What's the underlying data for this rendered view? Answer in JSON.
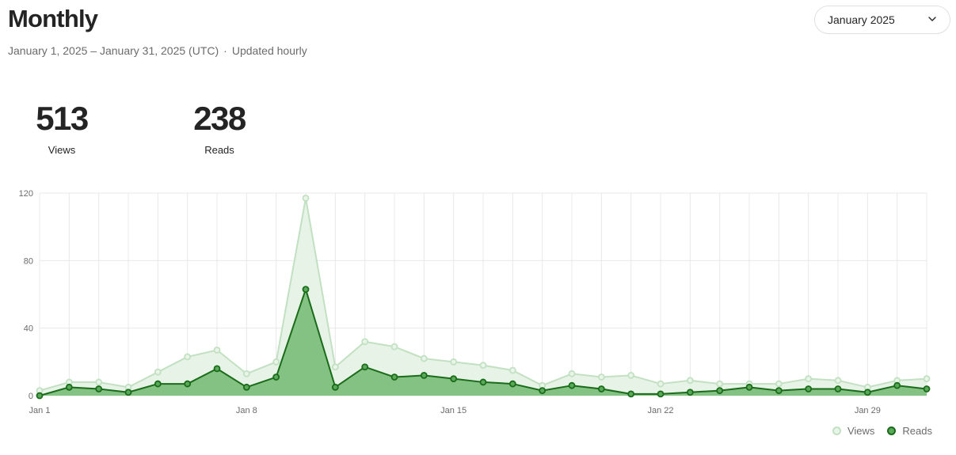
{
  "header": {
    "title": "Monthly",
    "date_range": "January 1, 2025 – January 31, 2025 (UTC)",
    "separator": "·",
    "update_note": "Updated hourly"
  },
  "month_select": {
    "value": "January 2025",
    "icon": "chevron-down-icon"
  },
  "stats": {
    "views": {
      "value": "513",
      "label": "Views"
    },
    "reads": {
      "value": "238",
      "label": "Reads"
    }
  },
  "colors": {
    "views_line": "#c2e0c2",
    "views_fill": "#e6f3e6",
    "reads_line": "#1a6b1a",
    "reads_fill": "#84c284",
    "reads_point_fill": "#5aa85a",
    "grid": "#e8e8e8"
  },
  "chart_data": {
    "type": "area",
    "x": [
      "Jan 1",
      "Jan 2",
      "Jan 3",
      "Jan 4",
      "Jan 5",
      "Jan 6",
      "Jan 7",
      "Jan 8",
      "Jan 9",
      "Jan 10",
      "Jan 11",
      "Jan 12",
      "Jan 13",
      "Jan 14",
      "Jan 15",
      "Jan 16",
      "Jan 17",
      "Jan 18",
      "Jan 19",
      "Jan 20",
      "Jan 21",
      "Jan 22",
      "Jan 23",
      "Jan 24",
      "Jan 25",
      "Jan 26",
      "Jan 27",
      "Jan 28",
      "Jan 29",
      "Jan 30",
      "Jan 31"
    ],
    "x_tick_labels": [
      "Jan 1",
      "Jan 8",
      "Jan 15",
      "Jan 22",
      "Jan 29"
    ],
    "y_ticks": [
      0,
      40,
      80,
      120
    ],
    "ylim": [
      0,
      120
    ],
    "grid": true,
    "legend_position": "bottom-right",
    "series": [
      {
        "name": "Views",
        "values": [
          3,
          8,
          8,
          5,
          14,
          23,
          27,
          13,
          20,
          117,
          17,
          32,
          29,
          22,
          20,
          18,
          15,
          6,
          13,
          11,
          12,
          7,
          9,
          7,
          7,
          7,
          10,
          9,
          5,
          9,
          10
        ]
      },
      {
        "name": "Reads",
        "values": [
          0,
          5,
          4,
          2,
          7,
          7,
          16,
          5,
          11,
          63,
          5,
          17,
          11,
          12,
          10,
          8,
          7,
          3,
          6,
          4,
          1,
          1,
          2,
          3,
          5,
          3,
          4,
          4,
          2,
          6,
          4
        ]
      }
    ]
  }
}
